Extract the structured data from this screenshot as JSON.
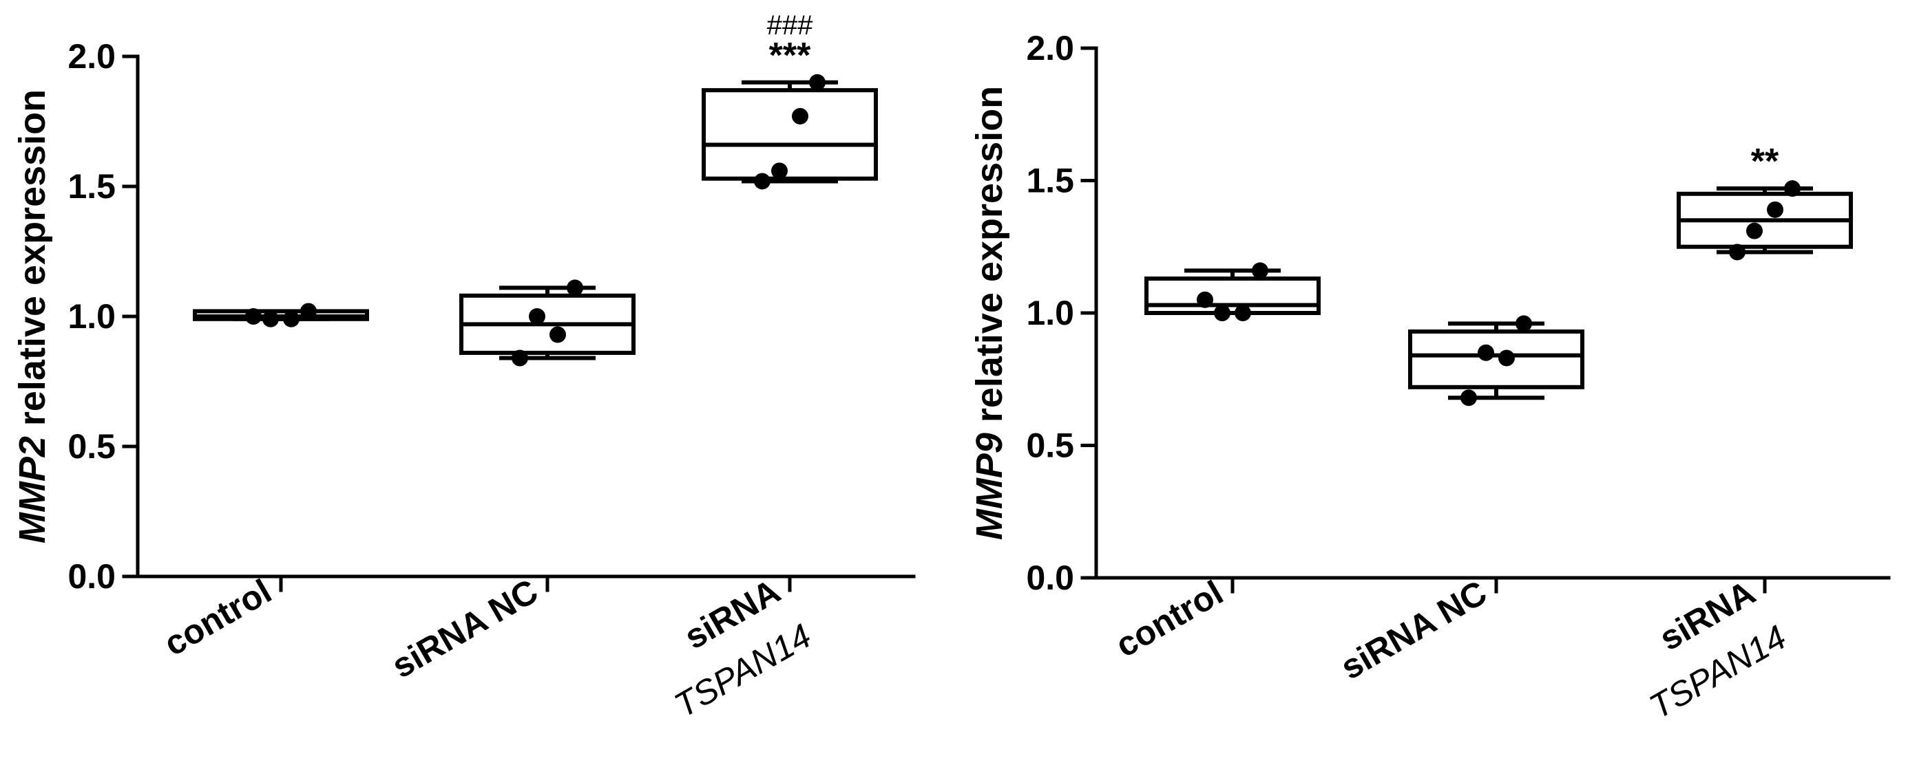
{
  "chart_data": [
    {
      "type": "box",
      "ylabel": {
        "gene": "MMP2",
        "rest": " relative expression"
      },
      "ylim": [
        0,
        2.0
      ],
      "yticks": [
        "0.0",
        "0.5",
        "1.0",
        "1.5",
        "2.0"
      ],
      "categories": [
        {
          "line1": "control",
          "line2": ""
        },
        {
          "line1": "siRNA NC",
          "line2": ""
        },
        {
          "line1": "siRNA",
          "line2": "TSPAN14"
        }
      ],
      "groups": [
        {
          "min": 0.99,
          "q1": 0.99,
          "median": 1.0,
          "q3": 1.02,
          "max": 1.02,
          "points": [
            1.0,
            0.99,
            0.99,
            1.02
          ],
          "annotations": []
        },
        {
          "min": 0.84,
          "q1": 0.86,
          "median": 0.97,
          "q3": 1.08,
          "max": 1.11,
          "points": [
            0.84,
            1.0,
            0.93,
            1.11
          ],
          "annotations": []
        },
        {
          "min": 1.52,
          "q1": 1.53,
          "median": 1.66,
          "q3": 1.87,
          "max": 1.9,
          "points": [
            1.52,
            1.56,
            1.77,
            1.9
          ],
          "annotations": [
            "***",
            "###"
          ]
        }
      ]
    },
    {
      "type": "box",
      "ylabel": {
        "gene": "MMP9",
        "rest": " relative expression"
      },
      "ylim": [
        0,
        2.0
      ],
      "yticks": [
        "0.0",
        "0.5",
        "1.0",
        "1.5",
        "2.0"
      ],
      "categories": [
        {
          "line1": "control",
          "line2": ""
        },
        {
          "line1": "siRNA NC",
          "line2": ""
        },
        {
          "line1": "siRNA",
          "line2": "TSPAN14"
        }
      ],
      "groups": [
        {
          "min": 1.0,
          "q1": 1.0,
          "median": 1.03,
          "q3": 1.13,
          "max": 1.16,
          "points": [
            1.05,
            1.0,
            1.0,
            1.16
          ],
          "annotations": []
        },
        {
          "min": 0.68,
          "q1": 0.72,
          "median": 0.84,
          "q3": 0.93,
          "max": 0.96,
          "points": [
            0.68,
            0.85,
            0.83,
            0.96
          ],
          "annotations": []
        },
        {
          "min": 1.23,
          "q1": 1.25,
          "median": 1.35,
          "q3": 1.45,
          "max": 1.47,
          "points": [
            1.23,
            1.31,
            1.39,
            1.47
          ],
          "annotations": [
            "**"
          ]
        }
      ]
    }
  ]
}
